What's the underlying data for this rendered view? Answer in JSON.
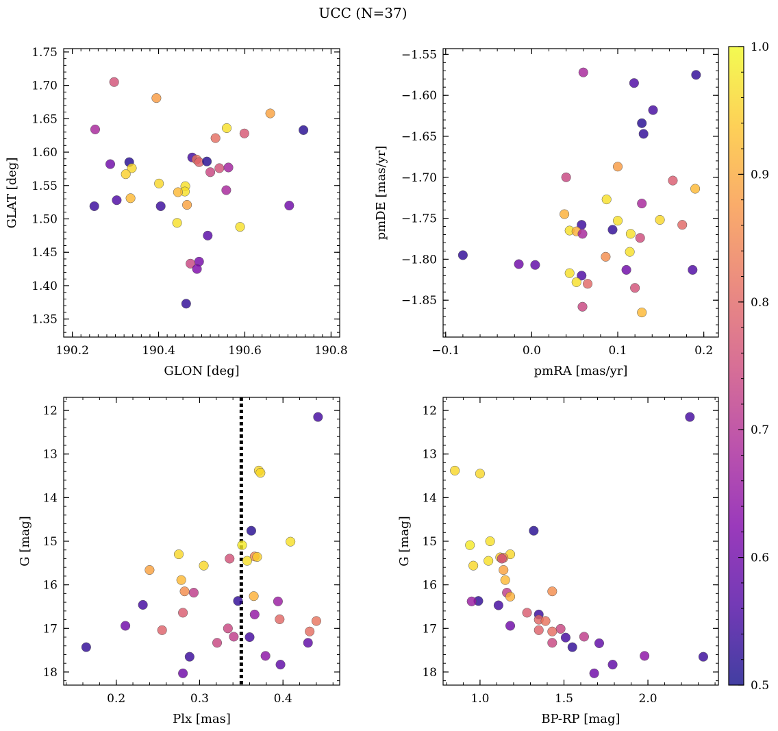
{
  "title": "UCC (N=37)",
  "colorbar": {
    "min": 0.5,
    "max": 1.0,
    "ticks": [
      "0.5",
      "0.6",
      "0.7",
      "0.8",
      "0.9",
      "1.0"
    ],
    "colormap": "plasma"
  },
  "chart_data": [
    {
      "type": "scatter",
      "xlabel": "GLON [deg]",
      "ylabel": "GLAT [deg]",
      "xlim": [
        190.18,
        190.82
      ],
      "ylim": [
        1.323,
        1.755
      ],
      "xticks": [
        "190.2",
        "190.4",
        "190.6",
        "190.8"
      ],
      "yticks": [
        "1.35",
        "1.40",
        "1.45",
        "1.50",
        "1.55",
        "1.60",
        "1.65",
        "1.70",
        "1.75"
      ],
      "points": [
        {
          "x": 190.297,
          "y": 1.705,
          "c": 0.76
        },
        {
          "x": 190.253,
          "y": 1.634,
          "c": 0.68
        },
        {
          "x": 190.395,
          "y": 1.681,
          "c": 0.88
        },
        {
          "x": 190.659,
          "y": 1.658,
          "c": 0.89
        },
        {
          "x": 190.736,
          "y": 1.633,
          "c": 0.52
        },
        {
          "x": 190.558,
          "y": 1.636,
          "c": 0.97
        },
        {
          "x": 190.599,
          "y": 1.628,
          "c": 0.77
        },
        {
          "x": 190.532,
          "y": 1.621,
          "c": 0.81
        },
        {
          "x": 190.288,
          "y": 1.582,
          "c": 0.6
        },
        {
          "x": 190.332,
          "y": 1.585,
          "c": 0.52
        },
        {
          "x": 190.338,
          "y": 1.576,
          "c": 0.96
        },
        {
          "x": 190.324,
          "y": 1.567,
          "c": 0.95
        },
        {
          "x": 190.478,
          "y": 1.592,
          "c": 0.55
        },
        {
          "x": 190.488,
          "y": 1.589,
          "c": 0.82
        },
        {
          "x": 190.494,
          "y": 1.585,
          "c": 0.79
        },
        {
          "x": 190.512,
          "y": 1.586,
          "c": 0.52
        },
        {
          "x": 190.541,
          "y": 1.576,
          "c": 0.76
        },
        {
          "x": 190.562,
          "y": 1.577,
          "c": 0.67
        },
        {
          "x": 190.52,
          "y": 1.57,
          "c": 0.74
        },
        {
          "x": 190.401,
          "y": 1.553,
          "c": 0.96
        },
        {
          "x": 190.462,
          "y": 1.549,
          "c": 0.97
        },
        {
          "x": 190.461,
          "y": 1.541,
          "c": 0.97
        },
        {
          "x": 190.445,
          "y": 1.54,
          "c": 0.92
        },
        {
          "x": 190.557,
          "y": 1.543,
          "c": 0.68
        },
        {
          "x": 190.335,
          "y": 1.531,
          "c": 0.92
        },
        {
          "x": 190.303,
          "y": 1.528,
          "c": 0.56
        },
        {
          "x": 190.466,
          "y": 1.521,
          "c": 0.89
        },
        {
          "x": 190.251,
          "y": 1.519,
          "c": 0.54
        },
        {
          "x": 190.405,
          "y": 1.519,
          "c": 0.54
        },
        {
          "x": 190.703,
          "y": 1.52,
          "c": 0.6
        },
        {
          "x": 190.443,
          "y": 1.494,
          "c": 0.97
        },
        {
          "x": 190.589,
          "y": 1.488,
          "c": 0.97
        },
        {
          "x": 190.514,
          "y": 1.475,
          "c": 0.57
        },
        {
          "x": 190.494,
          "y": 1.436,
          "c": 0.61
        },
        {
          "x": 190.474,
          "y": 1.433,
          "c": 0.74
        },
        {
          "x": 190.489,
          "y": 1.425,
          "c": 0.62
        },
        {
          "x": 190.464,
          "y": 1.373,
          "c": 0.53
        }
      ]
    },
    {
      "type": "scatter",
      "xlabel": "pmRA [mas/yr]",
      "ylabel": "pmDE [mas/yr]",
      "xlim": [
        -0.103,
        0.217
      ],
      "ylim": [
        -1.895,
        -1.543
      ],
      "xticks": [
        "−0.1",
        "0.0",
        "0.1",
        "0.2"
      ],
      "yticks": [
        "−1.85",
        "−1.80",
        "−1.75",
        "−1.70",
        "−1.65",
        "−1.60",
        "−1.55"
      ],
      "points": [
        {
          "x": 0.06,
          "y": -1.572,
          "c": 0.68
        },
        {
          "x": 0.119,
          "y": -1.585,
          "c": 0.56
        },
        {
          "x": 0.191,
          "y": -1.575,
          "c": 0.53
        },
        {
          "x": 0.141,
          "y": -1.618,
          "c": 0.55
        },
        {
          "x": 0.128,
          "y": -1.634,
          "c": 0.52
        },
        {
          "x": 0.13,
          "y": -1.647,
          "c": 0.53
        },
        {
          "x": 0.1,
          "y": -1.687,
          "c": 0.88
        },
        {
          "x": 0.04,
          "y": -1.7,
          "c": 0.74
        },
        {
          "x": 0.164,
          "y": -1.704,
          "c": 0.78
        },
        {
          "x": 0.19,
          "y": -1.714,
          "c": 0.92
        },
        {
          "x": 0.087,
          "y": -1.727,
          "c": 0.97
        },
        {
          "x": 0.128,
          "y": -1.732,
          "c": 0.68
        },
        {
          "x": 0.038,
          "y": -1.745,
          "c": 0.91
        },
        {
          "x": 0.149,
          "y": -1.752,
          "c": 0.96
        },
        {
          "x": 0.1,
          "y": -1.753,
          "c": 0.97
        },
        {
          "x": 0.058,
          "y": -1.758,
          "c": 0.54
        },
        {
          "x": 0.175,
          "y": -1.758,
          "c": 0.8
        },
        {
          "x": 0.044,
          "y": -1.765,
          "c": 0.97
        },
        {
          "x": 0.052,
          "y": -1.766,
          "c": 0.91
        },
        {
          "x": 0.094,
          "y": -1.764,
          "c": 0.53
        },
        {
          "x": 0.059,
          "y": -1.769,
          "c": 0.68
        },
        {
          "x": 0.115,
          "y": -1.769,
          "c": 0.97
        },
        {
          "x": 0.126,
          "y": -1.774,
          "c": 0.75
        },
        {
          "x": 0.114,
          "y": -1.791,
          "c": 0.97
        },
        {
          "x": 0.086,
          "y": -1.797,
          "c": 0.86
        },
        {
          "x": -0.08,
          "y": -1.795,
          "c": 0.53
        },
        {
          "x": -0.015,
          "y": -1.806,
          "c": 0.6
        },
        {
          "x": 0.004,
          "y": -1.807,
          "c": 0.58
        },
        {
          "x": 0.187,
          "y": -1.813,
          "c": 0.56
        },
        {
          "x": 0.11,
          "y": -1.813,
          "c": 0.6
        },
        {
          "x": 0.044,
          "y": -1.817,
          "c": 0.97
        },
        {
          "x": 0.058,
          "y": -1.82,
          "c": 0.56
        },
        {
          "x": 0.052,
          "y": -1.828,
          "c": 0.97
        },
        {
          "x": 0.065,
          "y": -1.83,
          "c": 0.8
        },
        {
          "x": 0.12,
          "y": -1.835,
          "c": 0.76
        },
        {
          "x": 0.059,
          "y": -1.858,
          "c": 0.74
        },
        {
          "x": 0.128,
          "y": -1.865,
          "c": 0.92
        }
      ]
    },
    {
      "type": "scatter",
      "xlabel": "Plx [mas]",
      "ylabel": "G [mag]",
      "xlim": [
        0.137,
        0.468
      ],
      "ylim": [
        18.3,
        11.7
      ],
      "yinverted": true,
      "xticks": [
        "0.2",
        "0.3",
        "0.4"
      ],
      "yticks": [
        "12",
        "13",
        "14",
        "15",
        "16",
        "17",
        "18"
      ],
      "reference_line": {
        "x": 0.35,
        "style": "dotted"
      },
      "points": [
        {
          "x": 0.442,
          "y": 12.15,
          "c": 0.55
        },
        {
          "x": 0.371,
          "y": 13.38,
          "c": 0.96
        },
        {
          "x": 0.373,
          "y": 13.43,
          "c": 0.96
        },
        {
          "x": 0.362,
          "y": 14.76,
          "c": 0.52
        },
        {
          "x": 0.409,
          "y": 15.01,
          "c": 0.97
        },
        {
          "x": 0.351,
          "y": 15.09,
          "c": 0.98
        },
        {
          "x": 0.275,
          "y": 15.3,
          "c": 0.96
        },
        {
          "x": 0.366,
          "y": 15.35,
          "c": 0.85
        },
        {
          "x": 0.369,
          "y": 15.36,
          "c": 0.95
        },
        {
          "x": 0.336,
          "y": 15.4,
          "c": 0.76
        },
        {
          "x": 0.357,
          "y": 15.45,
          "c": 0.97
        },
        {
          "x": 0.305,
          "y": 15.56,
          "c": 0.96
        },
        {
          "x": 0.24,
          "y": 15.66,
          "c": 0.89
        },
        {
          "x": 0.278,
          "y": 15.89,
          "c": 0.92
        },
        {
          "x": 0.282,
          "y": 16.15,
          "c": 0.86
        },
        {
          "x": 0.293,
          "y": 16.18,
          "c": 0.72
        },
        {
          "x": 0.365,
          "y": 16.26,
          "c": 0.91
        },
        {
          "x": 0.346,
          "y": 16.37,
          "c": 0.53
        },
        {
          "x": 0.394,
          "y": 16.38,
          "c": 0.66
        },
        {
          "x": 0.232,
          "y": 16.46,
          "c": 0.55
        },
        {
          "x": 0.28,
          "y": 16.64,
          "c": 0.78
        },
        {
          "x": 0.366,
          "y": 16.68,
          "c": 0.65
        },
        {
          "x": 0.396,
          "y": 16.79,
          "c": 0.8
        },
        {
          "x": 0.44,
          "y": 16.83,
          "c": 0.82
        },
        {
          "x": 0.211,
          "y": 16.94,
          "c": 0.6
        },
        {
          "x": 0.334,
          "y": 17.0,
          "c": 0.74
        },
        {
          "x": 0.255,
          "y": 17.04,
          "c": 0.79
        },
        {
          "x": 0.432,
          "y": 17.07,
          "c": 0.81
        },
        {
          "x": 0.341,
          "y": 17.19,
          "c": 0.72
        },
        {
          "x": 0.36,
          "y": 17.2,
          "c": 0.55
        },
        {
          "x": 0.321,
          "y": 17.33,
          "c": 0.74
        },
        {
          "x": 0.43,
          "y": 17.33,
          "c": 0.58
        },
        {
          "x": 0.164,
          "y": 17.43,
          "c": 0.53
        },
        {
          "x": 0.379,
          "y": 17.63,
          "c": 0.64
        },
        {
          "x": 0.288,
          "y": 17.65,
          "c": 0.54
        },
        {
          "x": 0.397,
          "y": 17.83,
          "c": 0.58
        },
        {
          "x": 0.28,
          "y": 18.03,
          "c": 0.6
        }
      ]
    },
    {
      "type": "scatter",
      "xlabel": "BP-RP [mag]",
      "ylabel": "G [mag]",
      "xlim": [
        0.78,
        2.42
      ],
      "ylim": [
        18.3,
        11.7
      ],
      "yinverted": true,
      "xticks": [
        "1.0",
        "1.5",
        "2.0"
      ],
      "yticks": [
        "12",
        "13",
        "14",
        "15",
        "16",
        "17",
        "18"
      ],
      "points": [
        {
          "x": 2.25,
          "y": 12.15,
          "c": 0.55
        },
        {
          "x": 0.85,
          "y": 13.38,
          "c": 0.96
        },
        {
          "x": 1.0,
          "y": 13.45,
          "c": 0.96
        },
        {
          "x": 1.32,
          "y": 14.76,
          "c": 0.52
        },
        {
          "x": 1.06,
          "y": 15.0,
          "c": 0.97
        },
        {
          "x": 0.94,
          "y": 15.09,
          "c": 0.98
        },
        {
          "x": 1.18,
          "y": 15.3,
          "c": 0.96
        },
        {
          "x": 1.12,
          "y": 15.37,
          "c": 0.94
        },
        {
          "x": 1.14,
          "y": 15.38,
          "c": 0.86
        },
        {
          "x": 1.13,
          "y": 15.4,
          "c": 0.76
        },
        {
          "x": 1.05,
          "y": 15.45,
          "c": 0.97
        },
        {
          "x": 0.96,
          "y": 15.56,
          "c": 0.96
        },
        {
          "x": 1.14,
          "y": 15.66,
          "c": 0.89
        },
        {
          "x": 1.15,
          "y": 15.89,
          "c": 0.92
        },
        {
          "x": 1.43,
          "y": 16.15,
          "c": 0.86
        },
        {
          "x": 1.16,
          "y": 16.18,
          "c": 0.72
        },
        {
          "x": 1.18,
          "y": 16.27,
          "c": 0.91
        },
        {
          "x": 0.99,
          "y": 16.37,
          "c": 0.53
        },
        {
          "x": 0.95,
          "y": 16.38,
          "c": 0.66
        },
        {
          "x": 1.11,
          "y": 16.47,
          "c": 0.55
        },
        {
          "x": 1.28,
          "y": 16.64,
          "c": 0.78
        },
        {
          "x": 1.35,
          "y": 16.68,
          "c": 0.54
        },
        {
          "x": 1.35,
          "y": 16.8,
          "c": 0.8
        },
        {
          "x": 1.39,
          "y": 16.83,
          "c": 0.82
        },
        {
          "x": 1.18,
          "y": 16.94,
          "c": 0.6
        },
        {
          "x": 1.48,
          "y": 17.01,
          "c": 0.74
        },
        {
          "x": 1.35,
          "y": 17.04,
          "c": 0.79
        },
        {
          "x": 1.43,
          "y": 17.07,
          "c": 0.81
        },
        {
          "x": 1.62,
          "y": 17.19,
          "c": 0.72
        },
        {
          "x": 1.51,
          "y": 17.21,
          "c": 0.55
        },
        {
          "x": 1.43,
          "y": 17.33,
          "c": 0.74
        },
        {
          "x": 1.71,
          "y": 17.34,
          "c": 0.58
        },
        {
          "x": 1.55,
          "y": 17.43,
          "c": 0.53
        },
        {
          "x": 1.98,
          "y": 17.63,
          "c": 0.64
        },
        {
          "x": 2.33,
          "y": 17.65,
          "c": 0.54
        },
        {
          "x": 1.79,
          "y": 17.83,
          "c": 0.58
        },
        {
          "x": 1.68,
          "y": 18.03,
          "c": 0.6
        }
      ]
    }
  ]
}
